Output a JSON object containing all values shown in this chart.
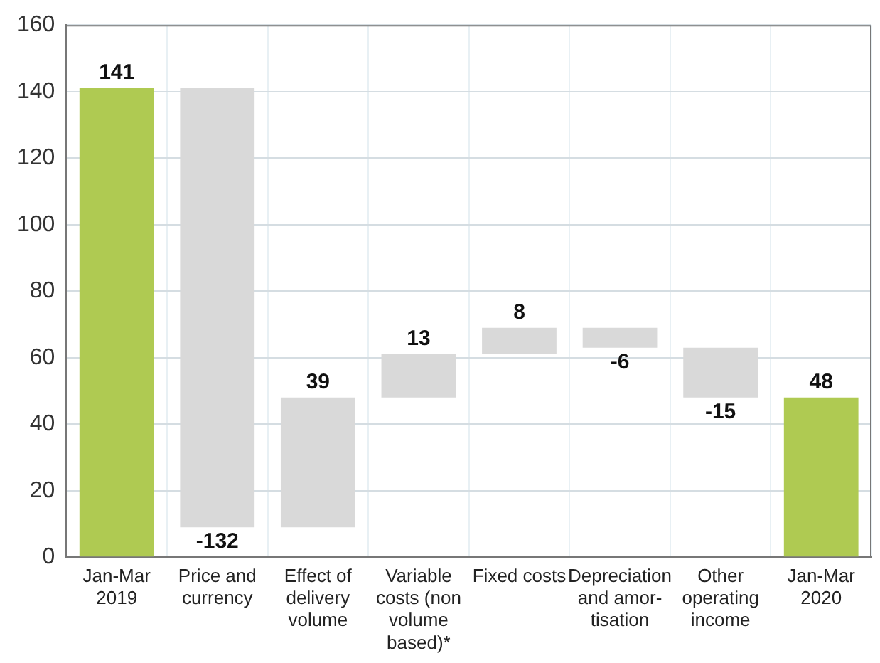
{
  "chart_data": {
    "type": "bar",
    "categories": [
      "Jan-Mar 2019",
      "Price and currency",
      "Effect of delivery volume",
      "Variable costs (non volume based)*",
      "Fixed costs",
      "Depreciation and amor-tisation",
      "Other operating income",
      "Jan-Mar 2020"
    ],
    "values": [
      141,
      -132,
      39,
      13,
      8,
      -6,
      -15,
      48
    ],
    "base": [
      0,
      141,
      9,
      48,
      61,
      69,
      63,
      0
    ],
    "colors": [
      "#afca52",
      "#d9d9d9",
      "#d9d9d9",
      "#d9d9d9",
      "#d9d9d9",
      "#d9d9d9",
      "#d9d9d9",
      "#afca52"
    ],
    "ylim": [
      0,
      160
    ],
    "yticks": [
      0,
      20,
      40,
      60,
      80,
      100,
      120,
      140,
      160
    ],
    "grid": true,
    "data_labels": true
  }
}
